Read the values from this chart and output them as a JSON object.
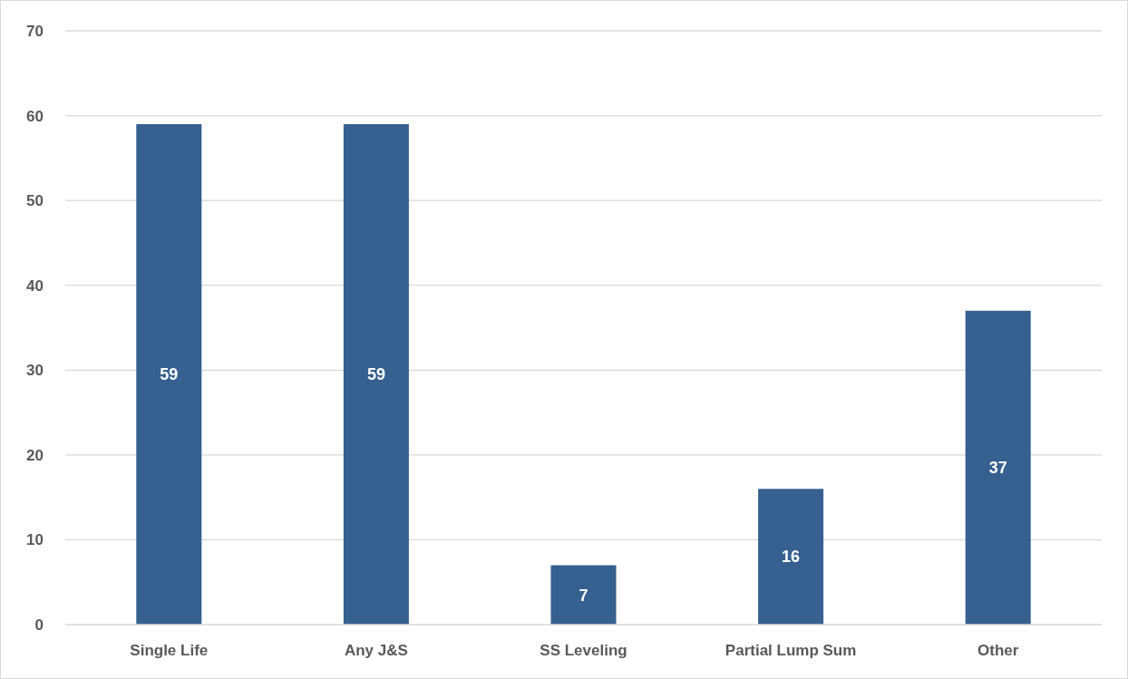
{
  "chart_data": {
    "type": "bar",
    "categories": [
      "Single Life",
      "Any J&S",
      "SS Leveling",
      "Partial Lump Sum",
      "Other"
    ],
    "values": [
      59,
      59,
      7,
      16,
      37
    ],
    "color": "#36608f",
    "ylim": [
      0,
      70
    ],
    "yticks": [
      0,
      10,
      20,
      30,
      40,
      50,
      60,
      70
    ],
    "grid": "y",
    "data_labels": true
  }
}
